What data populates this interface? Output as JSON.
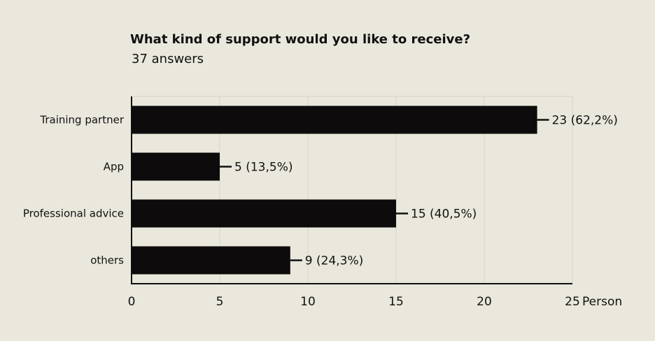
{
  "title": "What kind of support would you like to receive?",
  "subtitle": "37 answers",
  "chart_data": {
    "type": "bar",
    "orientation": "horizontal",
    "categories": [
      "Training partner",
      "App",
      "Professional advice",
      "others"
    ],
    "values": [
      23,
      5,
      15,
      9
    ],
    "data_labels": [
      "23 (62,2%)",
      "5 (13,5%)",
      "15 (40,5%)",
      "9 (24,3%)"
    ],
    "xlim": [
      0,
      25
    ],
    "xticks": [
      "0",
      "5",
      "10",
      "15",
      "20",
      "25"
    ],
    "xlabel": "Person",
    "grid": true,
    "bar_color": "#0d0b0b",
    "grid_color": "#d6d3c8"
  }
}
